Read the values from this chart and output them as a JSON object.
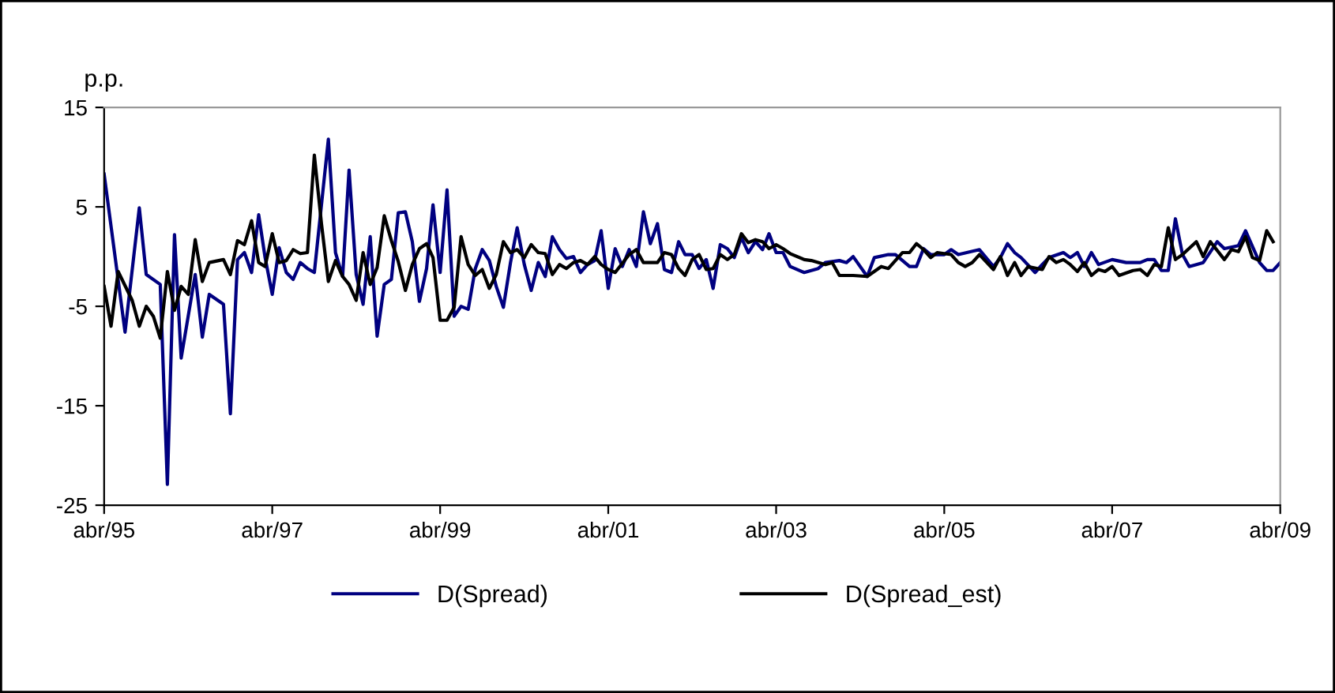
{
  "chart_data": {
    "type": "line",
    "ylabel": "p.p.",
    "ylim": [
      -25,
      15
    ],
    "yticks": [
      -25,
      -15,
      -5,
      5,
      15
    ],
    "xlim": [
      "1995-04",
      "2009-04"
    ],
    "xticks": [
      {
        "value": "1995-04",
        "label": "abr/95"
      },
      {
        "value": "1997-04",
        "label": "abr/97"
      },
      {
        "value": "1999-04",
        "label": "abr/99"
      },
      {
        "value": "2001-04",
        "label": "abr/01"
      },
      {
        "value": "2003-04",
        "label": "abr/03"
      },
      {
        "value": "2005-04",
        "label": "abr/05"
      },
      {
        "value": "2007-04",
        "label": "abr/07"
      },
      {
        "value": "2009-04",
        "label": "abr/09"
      }
    ],
    "grid": false,
    "legend": "bottom",
    "marker": "none",
    "line_style": "solid",
    "series": [
      {
        "name": "D(Spread)",
        "color": "#000080",
        "x": [
          "1995-04",
          "1995-07",
          "1995-09",
          "1995-10",
          "1995-12",
          "1996-01",
          "1996-02",
          "1996-03",
          "1996-05",
          "1996-06",
          "1996-07",
          "1996-09",
          "1996-10",
          "1996-11",
          "1996-12",
          "1997-01",
          "1997-02",
          "1997-03",
          "1997-04",
          "1997-05",
          "1997-06",
          "1997-07",
          "1997-08",
          "1997-09",
          "1997-10",
          "1997-12",
          "1998-01",
          "1998-02",
          "1998-03",
          "1998-04",
          "1998-05",
          "1998-06",
          "1998-07",
          "1998-08",
          "1998-09",
          "1998-10",
          "1998-11",
          "1998-12",
          "1999-01",
          "1999-02",
          "1999-03",
          "1999-04",
          "1999-05",
          "1999-06",
          "1999-07",
          "1999-08",
          "1999-09",
          "1999-10",
          "1999-11",
          "1999-12",
          "2000-01",
          "2000-02",
          "2000-03",
          "2000-04",
          "2000-05",
          "2000-06",
          "2000-07",
          "2000-08",
          "2000-09",
          "2000-10",
          "2000-11",
          "2000-12",
          "2001-01",
          "2001-02",
          "2001-03",
          "2001-04",
          "2001-05",
          "2001-06",
          "2001-07",
          "2001-08",
          "2001-09",
          "2001-10",
          "2001-11",
          "2001-12",
          "2002-01",
          "2002-02",
          "2002-03",
          "2002-04",
          "2002-05",
          "2002-06",
          "2002-07",
          "2002-08",
          "2002-09",
          "2002-10",
          "2002-11",
          "2002-12",
          "2003-01",
          "2003-02",
          "2003-03",
          "2003-04",
          "2003-05",
          "2003-06",
          "2003-08",
          "2003-10",
          "2003-11",
          "2004-01",
          "2004-02",
          "2004-03",
          "2004-05",
          "2004-06",
          "2004-08",
          "2004-09",
          "2004-11",
          "2004-12",
          "2005-01",
          "2005-02",
          "2005-04",
          "2005-05",
          "2005-06",
          "2005-09",
          "2005-11",
          "2005-12",
          "2006-01",
          "2006-02",
          "2006-03",
          "2006-05",
          "2006-06",
          "2006-07",
          "2006-09",
          "2006-10",
          "2006-11",
          "2006-12",
          "2007-01",
          "2007-02",
          "2007-04",
          "2007-06",
          "2007-08",
          "2007-09",
          "2007-10",
          "2007-11",
          "2007-12",
          "2008-01",
          "2008-02",
          "2008-03",
          "2008-04",
          "2008-05",
          "2008-07",
          "2008-08",
          "2008-10",
          "2008-11",
          "2009-01",
          "2009-02",
          "2009-03",
          "2009-04"
        ],
        "values": [
          8.3,
          -7.6,
          4.9,
          -1.8,
          -2.8,
          -22.9,
          2.2,
          -10.2,
          -1.8,
          -8.1,
          -3.8,
          -4.8,
          -15.8,
          -0.3,
          0.4,
          -1.6,
          4.2,
          -0.1,
          -3.8,
          0.9,
          -1.6,
          -2.3,
          -0.6,
          -1.2,
          -1.6,
          11.8,
          0.4,
          -2.0,
          8.7,
          -1.8,
          -4.8,
          2.0,
          -8.0,
          -2.8,
          -2.3,
          4.4,
          4.5,
          1.5,
          -4.5,
          -1.2,
          5.2,
          -1.6,
          6.7,
          -6.0,
          -5.0,
          -5.3,
          -1.2,
          0.7,
          -0.4,
          -3.0,
          -5.1,
          -0.6,
          2.9,
          -0.8,
          -3.4,
          -0.6,
          -2.0,
          2.0,
          0.7,
          -0.2,
          0.0,
          -1.6,
          -0.8,
          -0.4,
          2.6,
          -3.2,
          0.8,
          -1.0,
          0.7,
          -1.0,
          4.5,
          1.3,
          3.3,
          -1.3,
          -1.6,
          1.5,
          0.2,
          0.2,
          -1.2,
          -0.3,
          -3.2,
          1.2,
          0.8,
          -0.1,
          1.9,
          0.4,
          1.5,
          0.7,
          2.3,
          0.4,
          0.4,
          -1.0,
          -1.6,
          -1.2,
          -0.6,
          -0.4,
          -0.6,
          0.0,
          -2.0,
          -0.1,
          0.2,
          0.2,
          -1.0,
          -1.0,
          0.8,
          0.2,
          0.2,
          0.7,
          0.2,
          0.7,
          -1.0,
          -0.1,
          1.3,
          0.4,
          -0.1,
          -1.6,
          -0.8,
          -0.1,
          0.4,
          -0.1,
          0.4,
          -1.0,
          0.4,
          -0.8,
          -0.3,
          -0.6,
          -0.6,
          -0.3,
          -0.3,
          -1.4,
          -1.4,
          3.8,
          0.2,
          -1.0,
          -0.8,
          -0.6,
          1.5,
          0.8,
          1.1,
          2.6,
          -0.6,
          -1.4,
          -1.4,
          -0.6
        ]
      },
      {
        "name": "D(Spread_est)",
        "color": "#000000",
        "x": [
          "1995-04",
          "1995-05",
          "1995-06",
          "1995-08",
          "1995-09",
          "1995-10",
          "1995-11",
          "1995-12",
          "1996-01",
          "1996-02",
          "1996-03",
          "1996-04",
          "1996-05",
          "1996-06",
          "1996-07",
          "1996-09",
          "1996-10",
          "1996-11",
          "1996-12",
          "1997-01",
          "1997-02",
          "1997-03",
          "1997-04",
          "1997-05",
          "1997-06",
          "1997-07",
          "1997-08",
          "1997-09",
          "1997-10",
          "1997-11",
          "1997-12",
          "1998-01",
          "1998-02",
          "1998-03",
          "1998-04",
          "1998-05",
          "1998-06",
          "1998-07",
          "1998-08",
          "1998-09",
          "1998-10",
          "1998-11",
          "1998-12",
          "1999-01",
          "1999-02",
          "1999-03",
          "1999-04",
          "1999-05",
          "1999-06",
          "1999-07",
          "1999-08",
          "1999-09",
          "1999-10",
          "1999-11",
          "1999-12",
          "2000-01",
          "2000-02",
          "2000-03",
          "2000-04",
          "2000-05",
          "2000-06",
          "2000-07",
          "2000-08",
          "2000-09",
          "2000-10",
          "2000-11",
          "2000-12",
          "2001-01",
          "2001-02",
          "2001-03",
          "2001-04",
          "2001-05",
          "2001-07",
          "2001-08",
          "2001-09",
          "2001-10",
          "2001-11",
          "2001-12",
          "2002-01",
          "2002-02",
          "2002-03",
          "2002-04",
          "2002-05",
          "2002-06",
          "2002-07",
          "2002-08",
          "2002-09",
          "2002-10",
          "2002-11",
          "2002-12",
          "2003-01",
          "2003-02",
          "2003-03",
          "2003-04",
          "2003-05",
          "2003-06",
          "2003-08",
          "2003-09",
          "2003-11",
          "2003-12",
          "2004-01",
          "2004-03",
          "2004-05",
          "2004-07",
          "2004-08",
          "2004-10",
          "2004-11",
          "2004-12",
          "2005-01",
          "2005-02",
          "2005-03",
          "2005-05",
          "2005-06",
          "2005-07",
          "2005-08",
          "2005-09",
          "2005-11",
          "2005-12",
          "2006-01",
          "2006-02",
          "2006-03",
          "2006-04",
          "2006-06",
          "2006-07",
          "2006-08",
          "2006-09",
          "2006-10",
          "2006-11",
          "2006-12",
          "2007-01",
          "2007-02",
          "2007-03",
          "2007-04",
          "2007-05",
          "2007-07",
          "2007-08",
          "2007-09",
          "2007-10",
          "2007-11",
          "2007-12",
          "2008-01",
          "2008-02",
          "2008-04",
          "2008-05",
          "2008-06",
          "2008-08",
          "2008-09",
          "2008-10",
          "2008-11",
          "2008-12",
          "2009-01",
          "2009-02",
          "2009-03"
        ],
        "values": [
          -3.0,
          -7.0,
          -1.5,
          -4.4,
          -7.0,
          -5.0,
          -6.0,
          -8.2,
          -1.5,
          -5.4,
          -3.0,
          -3.8,
          1.7,
          -2.5,
          -0.6,
          -0.3,
          -1.8,
          1.6,
          1.2,
          3.6,
          -0.6,
          -1.0,
          2.3,
          -0.6,
          -0.4,
          0.7,
          0.3,
          0.4,
          10.2,
          3.3,
          -2.5,
          -0.4,
          -2.0,
          -2.8,
          -4.4,
          0.4,
          -2.8,
          -1.1,
          4.1,
          1.6,
          -0.5,
          -3.4,
          -0.8,
          0.8,
          1.3,
          -0.1,
          -6.4,
          -6.4,
          -5.1,
          2.0,
          -0.8,
          -1.9,
          -1.3,
          -3.2,
          -1.8,
          1.5,
          0.4,
          0.7,
          -0.1,
          1.2,
          0.4,
          0.3,
          -1.8,
          -0.8,
          -1.2,
          -0.6,
          -0.4,
          -0.8,
          0.0,
          -0.8,
          -1.3,
          -1.6,
          0.2,
          0.7,
          -0.6,
          -0.6,
          -0.6,
          0.4,
          0.2,
          -1.2,
          -1.9,
          -0.3,
          0.2,
          -1.3,
          -1.2,
          0.2,
          -0.3,
          0.2,
          2.3,
          1.4,
          1.7,
          1.5,
          0.8,
          1.2,
          0.8,
          0.3,
          -0.3,
          -0.4,
          -0.8,
          -0.6,
          -1.9,
          -1.9,
          -2.0,
          -1.0,
          -1.2,
          0.4,
          0.4,
          1.3,
          0.7,
          -0.1,
          0.4,
          0.2,
          -0.6,
          -1.0,
          -0.6,
          0.2,
          -1.3,
          0.0,
          -1.9,
          -0.6,
          -1.9,
          -1.0,
          -1.3,
          0.0,
          -0.6,
          -0.3,
          -0.8,
          -1.5,
          -0.6,
          -1.9,
          -1.3,
          -1.5,
          -1.0,
          -1.9,
          -1.4,
          -1.3,
          -1.9,
          -0.8,
          -1.0,
          2.9,
          -0.3,
          0.2,
          1.5,
          0.0,
          1.5,
          -0.3,
          0.7,
          0.5,
          2.0,
          -0.1,
          -0.4,
          2.6,
          1.5
        ]
      }
    ]
  }
}
